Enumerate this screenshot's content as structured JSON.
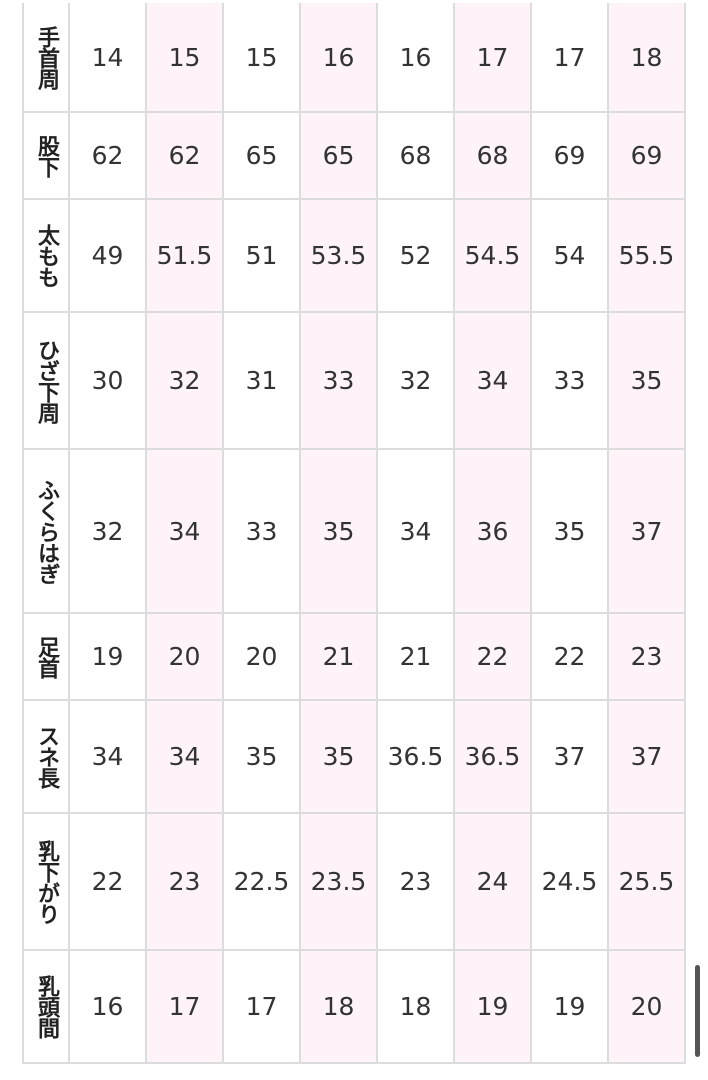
{
  "table": {
    "rows": [
      {
        "label": "手首周",
        "cells": [
          14,
          15,
          15,
          16,
          16,
          17,
          17,
          18
        ]
      },
      {
        "label": "股下",
        "cells": [
          62,
          62,
          65,
          65,
          68,
          68,
          69,
          69
        ]
      },
      {
        "label": "太もも",
        "cells": [
          49,
          51.5,
          51,
          53.5,
          52,
          54.5,
          54,
          55.5
        ]
      },
      {
        "label": "ひざ下周",
        "cells": [
          30,
          32,
          31,
          33,
          32,
          34,
          33,
          35
        ]
      },
      {
        "label": "ふくらはぎ",
        "cells": [
          32,
          34,
          33,
          35,
          34,
          36,
          35,
          37
        ]
      },
      {
        "label": "足首",
        "cells": [
          19,
          20,
          20,
          21,
          21,
          22,
          22,
          23
        ]
      },
      {
        "label": "スネ長",
        "cells": [
          34,
          34,
          35,
          35,
          36.5,
          36.5,
          37,
          37
        ]
      },
      {
        "label": "乳下がり",
        "cells": [
          22,
          23,
          22.5,
          23.5,
          23,
          24,
          24.5,
          25.5
        ]
      },
      {
        "label": "乳頭間",
        "cells": [
          16,
          17,
          17,
          18,
          18,
          19,
          19,
          20
        ]
      }
    ]
  }
}
